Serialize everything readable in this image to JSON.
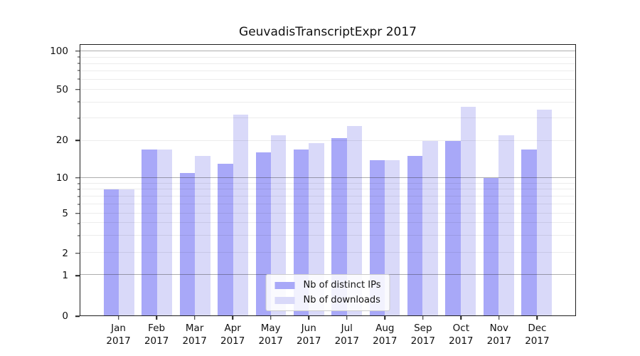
{
  "chart_data": {
    "type": "bar",
    "title": "GeuvadisTranscriptExpr 2017",
    "categories": [
      "Jan 2017",
      "Feb 2017",
      "Mar 2017",
      "Apr 2017",
      "May 2017",
      "Jun 2017",
      "Jul 2017",
      "Aug 2017",
      "Sep 2017",
      "Oct 2017",
      "Nov 2017",
      "Dec 2017"
    ],
    "series": [
      {
        "name": "Nb of distinct IPs",
        "color": "#a8a8f8",
        "values": [
          8,
          17,
          11,
          13,
          16,
          17,
          21,
          14,
          15,
          20,
          10,
          17
        ]
      },
      {
        "name": "Nb of downloads",
        "color": "#d9d9f9",
        "values": [
          8,
          17,
          15,
          32,
          22,
          19,
          26,
          14,
          20,
          37,
          22,
          35
        ]
      }
    ],
    "xlabel": "",
    "ylabel": "",
    "yscale": "symlog",
    "yticks": [
      0,
      1,
      2,
      5,
      10,
      20,
      50,
      100
    ],
    "ylim": [
      0,
      115
    ],
    "grid": true,
    "legend_position": "lower center"
  }
}
